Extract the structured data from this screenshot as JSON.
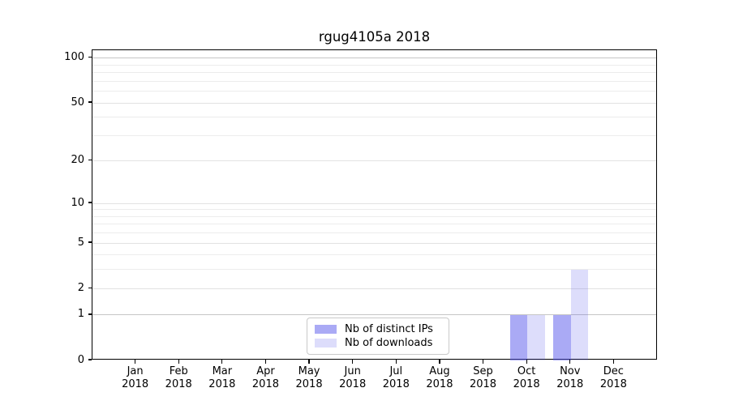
{
  "figure": {
    "background": "#ffffff"
  },
  "chart_data": {
    "type": "bar",
    "title": "rgug4105a 2018",
    "categories": [
      "Jan",
      "Feb",
      "Mar",
      "Apr",
      "May",
      "Jun",
      "Jul",
      "Aug",
      "Sep",
      "Oct",
      "Nov",
      "Dec"
    ],
    "category_year": "2018",
    "series": [
      {
        "name": "Nb of distinct IPs",
        "color": "rgba(85,85,235,0.5)",
        "solid_color": "#aaaaf5",
        "values": [
          0,
          0,
          0,
          0,
          0,
          0,
          0,
          0,
          0,
          1,
          1,
          0
        ]
      },
      {
        "name": "Nb of downloads",
        "color": "rgba(85,85,235,0.2)",
        "solid_color": "#dddefb",
        "values": [
          0,
          0,
          0,
          0,
          0,
          0,
          0,
          0,
          0,
          1,
          3,
          0
        ]
      }
    ],
    "y_axis": {
      "scale": "log1p",
      "major_ticks": [
        0,
        1,
        2,
        5,
        10,
        20,
        50,
        100
      ],
      "minor_gridlines": [
        3,
        4,
        6,
        7,
        8,
        9,
        30,
        40,
        60,
        70,
        80,
        90
      ],
      "max": 113
    },
    "legend": {
      "entries": [
        "Nb of distinct IPs",
        "Nb of downloads"
      ],
      "position": "bottom-center"
    },
    "grid": true,
    "grid_colors": {
      "emphasis": "#c6c6c6",
      "major": "#e2e2e2",
      "minor": "#ececec"
    }
  }
}
